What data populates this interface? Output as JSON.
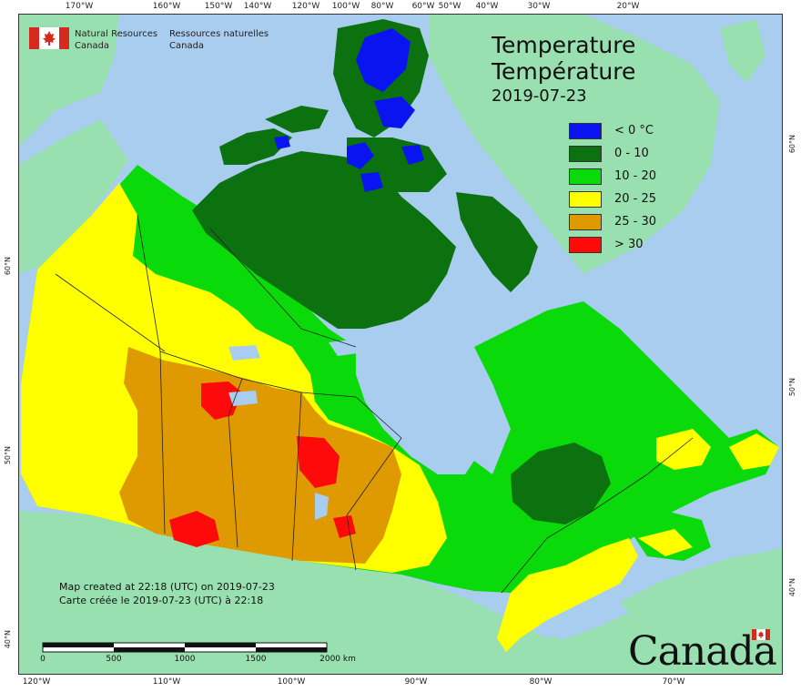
{
  "agency": {
    "en_line1": "Natural Resources",
    "en_line2": "Canada",
    "fr_line1": "Ressources naturelles",
    "fr_line2": "Canada"
  },
  "title": {
    "en": "Temperature",
    "fr": "Température",
    "date": "2019-07-23"
  },
  "legend": [
    {
      "label": "< 0 °C",
      "color": "#0a14f0"
    },
    {
      "label": "0 - 10",
      "color": "#0b720f"
    },
    {
      "label": "10 - 20",
      "color": "#0ad90a"
    },
    {
      "label": "20 - 25",
      "color": "#ffff00"
    },
    {
      "label": "25 - 30",
      "color": "#de9a00"
    },
    {
      "label": "> 30",
      "color": "#ff0a0a"
    }
  ],
  "credit": {
    "en": "Map created at 22:18 (UTC) on 2019-07-23",
    "fr": "Carte créée le 2019-07-23 (UTC) à 22:18"
  },
  "scale": {
    "labels": [
      "0",
      "500",
      "1000",
      "1500",
      "2000  km"
    ]
  },
  "graticule": {
    "top": [
      "170°W",
      "160°W",
      "150°W",
      "140°W",
      "120°W",
      "100°W",
      "80°W",
      "60°W",
      "50°W",
      "40°W",
      "30°W",
      "20°W"
    ],
    "bottom": [
      "120°W",
      "110°W",
      "100°W",
      "90°W",
      "80°W",
      "70°W"
    ],
    "left": [
      "60°N",
      "50°N",
      "40°N"
    ],
    "right": [
      "60°N",
      "50°N",
      "40°N"
    ]
  },
  "wordmark": "Canada",
  "colors": {
    "water": "#a9cdef",
    "non_canada_land": "#99e0b0"
  }
}
